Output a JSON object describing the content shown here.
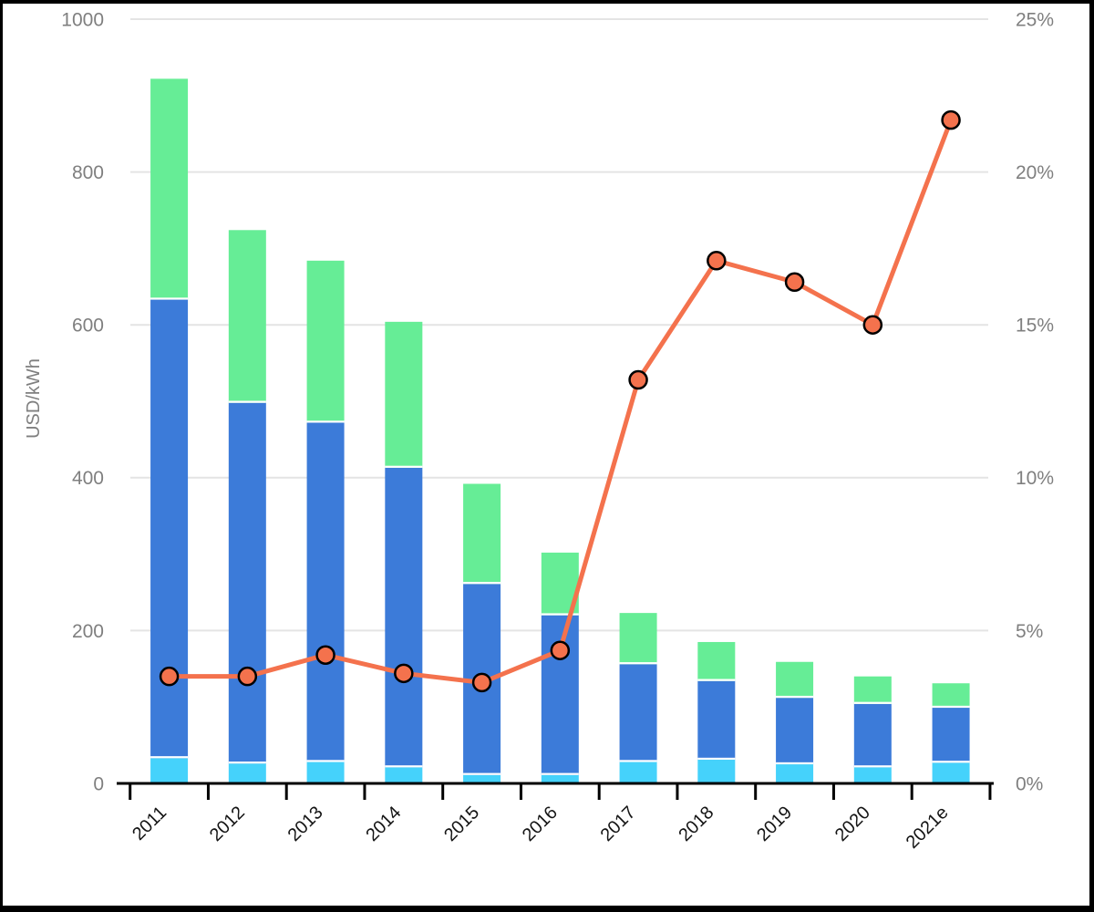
{
  "figure": {
    "title": "",
    "legend": "none"
  },
  "chart_data": {
    "type": "combo_stacked_bar_line",
    "categories": [
      "2011",
      "2012",
      "2013",
      "2014",
      "2015",
      "2016",
      "2017",
      "2018",
      "2019",
      "2020",
      "2021e"
    ],
    "stacked_bar_series": [
      {
        "name": "bottom-segment-cyan",
        "color": "#45D2FB",
        "values": [
          33,
          26,
          28,
          21,
          11,
          11,
          28,
          31,
          25,
          21,
          27
        ]
      },
      {
        "name": "middle-segment-blue",
        "color": "#3C7BD9",
        "values": [
          600,
          472,
          444,
          392,
          250,
          209,
          128,
          103,
          87,
          83,
          72
        ]
      },
      {
        "name": "top-segment-green",
        "color": "#66ED96",
        "values": [
          289,
          226,
          212,
          191,
          131,
          82,
          67,
          51,
          47,
          36,
          32
        ]
      }
    ],
    "bar_totals": [
      922,
      724,
      684,
      604,
      392,
      302,
      223,
      185,
      159,
      140,
      131
    ],
    "line_series": {
      "name": "percent-line-right-axis",
      "color": "#F4724D",
      "marker_fill": "#F4724D",
      "marker_stroke": "#000000",
      "values_percent": [
        3.5,
        3.5,
        4.2,
        3.6,
        3.3,
        4.35,
        13.2,
        17.1,
        16.4,
        15.0,
        21.7
      ]
    },
    "left_axis": {
      "title": "USD/kWh",
      "min": 0,
      "max": 1000,
      "tick_values": [
        1000,
        800,
        600,
        400,
        200,
        0
      ],
      "tick_labels": [
        "1000",
        "800",
        "600",
        "400",
        "200",
        "0"
      ]
    },
    "right_axis": {
      "min": 0,
      "max": 25,
      "tick_values": [
        25,
        20,
        15,
        10,
        5,
        0
      ],
      "tick_labels": [
        "25%",
        "20%",
        "15%",
        "10%",
        "5%",
        "0%"
      ]
    },
    "grid": "horizontal",
    "colors": {
      "grid": "#E4E4E4",
      "axis_line": "#000000",
      "tick_label": "#7F7F7F",
      "x_label": "#141414",
      "bar_separator": "#FFFFFF",
      "background": "#FFFFFF",
      "frame": "#000000"
    }
  }
}
